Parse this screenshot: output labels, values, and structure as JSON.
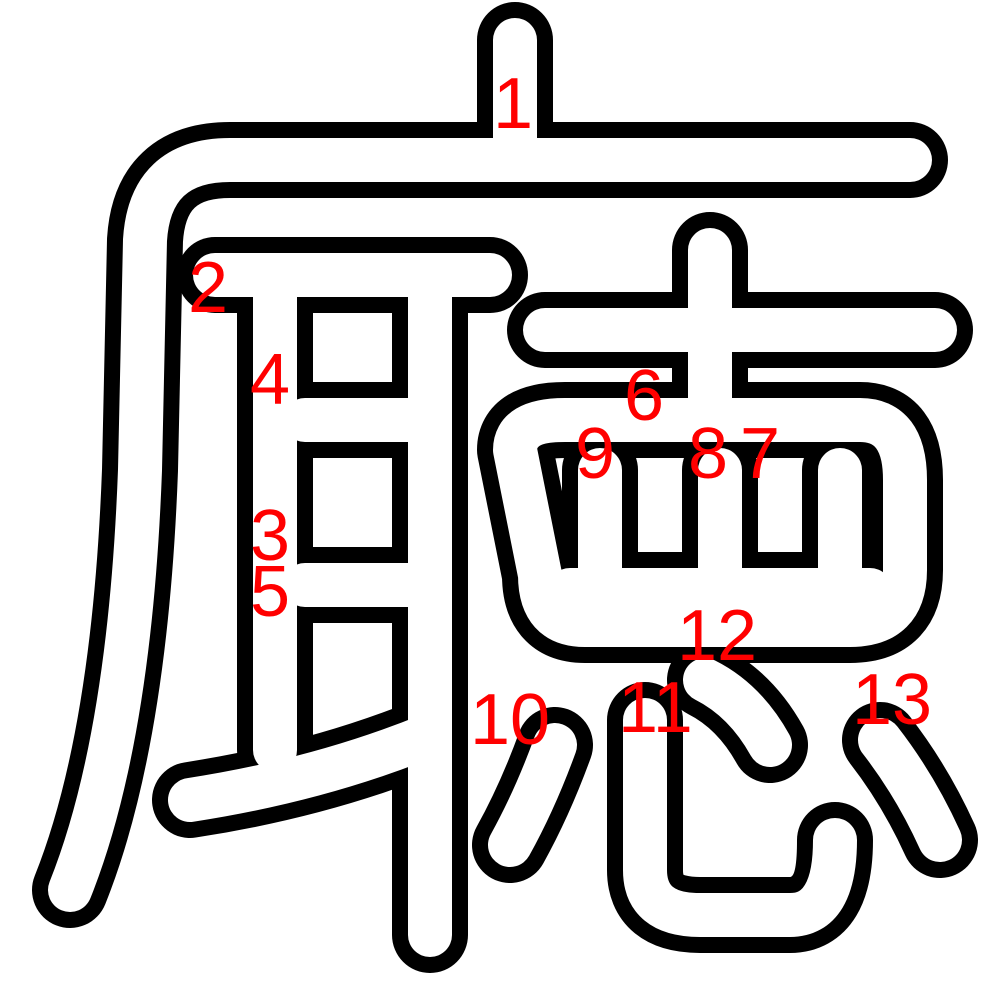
{
  "diagram": {
    "kind": "kanji-stroke-order",
    "stroke_count": 13,
    "colors": {
      "background": "#ffffff",
      "outline": "#000000",
      "fill": "#ffffff",
      "number": "#ff0000"
    },
    "strokes": [
      {
        "order": 1,
        "label": "1"
      },
      {
        "order": 2,
        "label": "2"
      },
      {
        "order": 3,
        "label": "3"
      },
      {
        "order": 4,
        "label": "4"
      },
      {
        "order": 5,
        "label": "5"
      },
      {
        "order": 6,
        "label": "6"
      },
      {
        "order": 7,
        "label": "7"
      },
      {
        "order": 8,
        "label": "8"
      },
      {
        "order": 9,
        "label": "9"
      },
      {
        "order": 10,
        "label": "10"
      },
      {
        "order": 11,
        "label": "11"
      },
      {
        "order": 12,
        "label": "12"
      },
      {
        "order": 13,
        "label": "13"
      }
    ]
  }
}
